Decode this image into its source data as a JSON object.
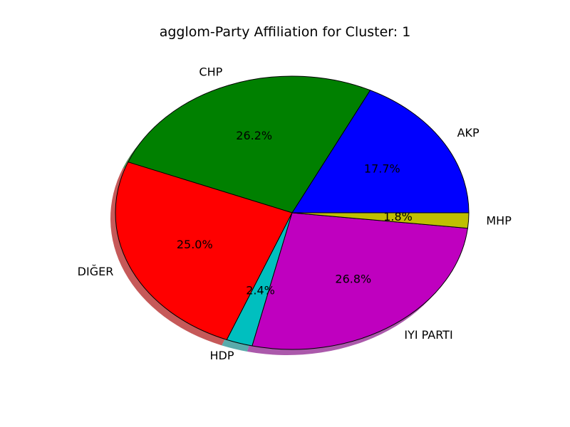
{
  "chart_data": {
    "type": "pie",
    "title": "agglom-Party Affiliation for Cluster: 1",
    "shadow": true,
    "slices": [
      {
        "label": "AKP",
        "value": 17.7,
        "pct_label": "17.7%",
        "color": "#0000ff"
      },
      {
        "label": "CHP",
        "value": 26.2,
        "pct_label": "26.2%",
        "color": "#008000"
      },
      {
        "label": "DIĞER",
        "value": 25.0,
        "pct_label": "25.0%",
        "color": "#ff0000"
      },
      {
        "label": "HDP",
        "value": 2.4,
        "pct_label": "2.4%",
        "color": "#00bfbf"
      },
      {
        "label": "IYI PARTI",
        "value": 26.8,
        "pct_label": "26.8%",
        "color": "#bf00bf"
      },
      {
        "label": "MHP",
        "value": 1.8,
        "pct_label": "1.8%",
        "color": "#bfbf00"
      }
    ]
  }
}
